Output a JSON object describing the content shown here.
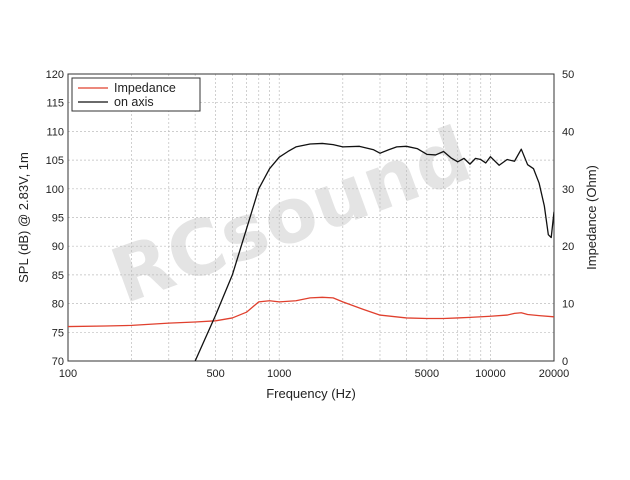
{
  "chart_data": {
    "type": "line",
    "title": "",
    "xlabel": "Frequency (Hz)",
    "ylabel_left": "SPL (dB) @ 2.83V, 1m",
    "ylabel_right": "Impedance (Ohm)",
    "x_scale": "log",
    "xlim": [
      100,
      20000
    ],
    "ylim_left": [
      70,
      120
    ],
    "ylim_right": [
      0,
      50
    ],
    "x_ticks": [
      100,
      500,
      1000,
      5000,
      10000,
      20000
    ],
    "x_tick_labels": [
      "100",
      "500",
      "1000",
      "5000",
      "10000",
      "20000"
    ],
    "y_left_ticks": [
      70,
      75,
      80,
      85,
      90,
      95,
      100,
      105,
      110,
      115,
      120
    ],
    "y_left_tick_labels": [
      "70",
      "75",
      "80",
      "85",
      "90",
      "95",
      "100",
      "105",
      "110",
      "115",
      "120"
    ],
    "y_right_ticks": [
      0,
      10,
      20,
      30,
      40,
      50
    ],
    "y_right_tick_labels": [
      "0",
      "10",
      "20",
      "30",
      "40",
      "50"
    ],
    "grid": true,
    "legend_position": "top-left",
    "watermark": "RCsound",
    "series": [
      {
        "name": "Impedance",
        "axis": "right",
        "color": "#e0402e",
        "points": [
          [
            100,
            6
          ],
          [
            150,
            6.1
          ],
          [
            200,
            6.2
          ],
          [
            300,
            6.6
          ],
          [
            400,
            6.8
          ],
          [
            500,
            7
          ],
          [
            600,
            7.5
          ],
          [
            700,
            8.5
          ],
          [
            800,
            10.3
          ],
          [
            900,
            10.5
          ],
          [
            1000,
            10.3
          ],
          [
            1200,
            10.5
          ],
          [
            1400,
            11
          ],
          [
            1600,
            11.1
          ],
          [
            1800,
            11
          ],
          [
            2000,
            10.3
          ],
          [
            2500,
            9
          ],
          [
            3000,
            8
          ],
          [
            4000,
            7.5
          ],
          [
            5000,
            7.4
          ],
          [
            6000,
            7.4
          ],
          [
            7000,
            7.5
          ],
          [
            8000,
            7.6
          ],
          [
            10000,
            7.8
          ],
          [
            12000,
            8
          ],
          [
            13000,
            8.3
          ],
          [
            14000,
            8.4
          ],
          [
            15000,
            8.1
          ],
          [
            17000,
            7.9
          ],
          [
            20000,
            7.7
          ]
        ]
      },
      {
        "name": "on axis",
        "axis": "left",
        "color": "#111111",
        "points": [
          [
            400,
            70
          ],
          [
            500,
            78
          ],
          [
            600,
            85
          ],
          [
            700,
            93
          ],
          [
            800,
            100
          ],
          [
            900,
            103.5
          ],
          [
            1000,
            105.5
          ],
          [
            1100,
            106.5
          ],
          [
            1200,
            107.3
          ],
          [
            1400,
            107.8
          ],
          [
            1600,
            107.9
          ],
          [
            1800,
            107.7
          ],
          [
            2000,
            107.3
          ],
          [
            2400,
            107.4
          ],
          [
            2800,
            106.8
          ],
          [
            3000,
            106.2
          ],
          [
            3300,
            106.8
          ],
          [
            3600,
            107.3
          ],
          [
            4000,
            107.4
          ],
          [
            4500,
            107
          ],
          [
            5000,
            106
          ],
          [
            5500,
            105.9
          ],
          [
            6000,
            106.5
          ],
          [
            6500,
            105.4
          ],
          [
            7000,
            104.7
          ],
          [
            7500,
            105.3
          ],
          [
            8000,
            104.3
          ],
          [
            8500,
            105.3
          ],
          [
            9000,
            105.1
          ],
          [
            9500,
            104.5
          ],
          [
            10000,
            105.6
          ],
          [
            11000,
            104.1
          ],
          [
            12000,
            105.1
          ],
          [
            13000,
            104.8
          ],
          [
            14000,
            106.9
          ],
          [
            15000,
            104.2
          ],
          [
            16000,
            103.5
          ],
          [
            17000,
            101
          ],
          [
            18000,
            97
          ],
          [
            18800,
            92
          ],
          [
            19400,
            91.5
          ],
          [
            20000,
            96
          ]
        ]
      }
    ]
  }
}
